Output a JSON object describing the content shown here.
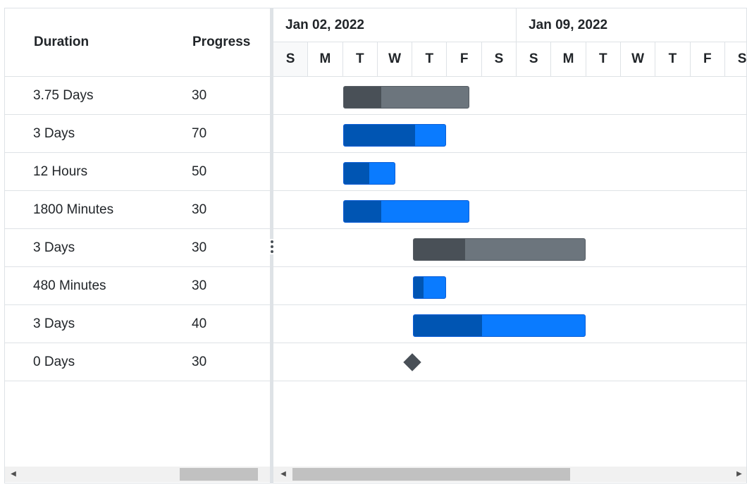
{
  "grid": {
    "headers": {
      "duration": "Duration",
      "progress": "Progress"
    },
    "rows": [
      {
        "duration": "3.75 Days",
        "progress": "30"
      },
      {
        "duration": "3 Days",
        "progress": "70"
      },
      {
        "duration": "12 Hours",
        "progress": "50"
      },
      {
        "duration": "1800 Minutes",
        "progress": "30"
      },
      {
        "duration": "3 Days",
        "progress": "30"
      },
      {
        "duration": "480 Minutes",
        "progress": "30"
      },
      {
        "duration": "3 Days",
        "progress": "40"
      },
      {
        "duration": "0 Days",
        "progress": "30"
      }
    ]
  },
  "timeline": {
    "weeks": [
      "Jan 02, 2022",
      "Jan 09, 2022"
    ],
    "days": [
      "S",
      "M",
      "T",
      "W",
      "T",
      "F",
      "S",
      "S",
      "M",
      "T",
      "W",
      "T",
      "F",
      "S"
    ]
  },
  "tasks": [
    {
      "variant": "secondary",
      "progress": 30
    },
    {
      "variant": "primary",
      "progress": 70
    },
    {
      "variant": "primary",
      "progress": 50
    },
    {
      "variant": "primary",
      "progress": 30
    },
    {
      "variant": "secondary",
      "progress": 30
    },
    {
      "variant": "primary",
      "progress": 30
    },
    {
      "variant": "primary",
      "progress": 40
    },
    {
      "variant": "milestone",
      "progress": 30
    }
  ],
  "colors": {
    "primary": "#0a7bff",
    "primary_progress": "#0055b3",
    "secondary": "#6c757d",
    "secondary_progress": "#495057",
    "grid_line": "#dee2e6"
  },
  "icons": {
    "splitter": "vertical-ellipsis-icon",
    "scroll_left": "triangle-left-icon",
    "scroll_right": "triangle-right-icon"
  }
}
